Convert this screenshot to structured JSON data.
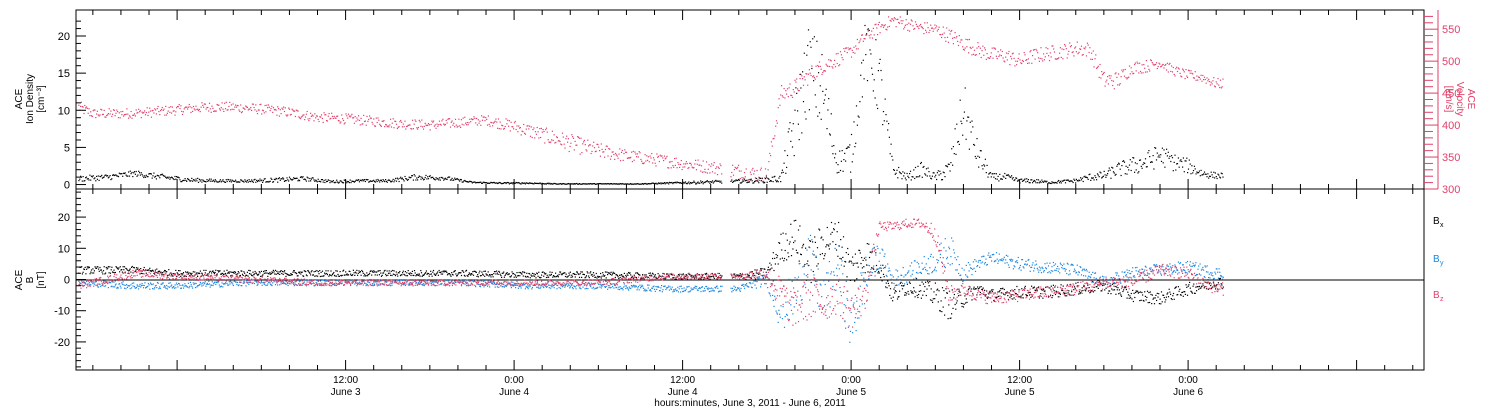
{
  "colors": {
    "density": "#000000",
    "velocity": "#e0406a",
    "bx": "#000000",
    "by": "#1a86e0",
    "bz": "#e0406a",
    "axis": "#000000"
  },
  "x_axis": {
    "label": "hours:minutes, June  3, 2011 - June  6, 2011",
    "ticks": [
      {
        "t": 12,
        "line1": "12:00",
        "line2": "June 3"
      },
      {
        "t": 24,
        "line1": "0:00",
        "line2": "June 4"
      },
      {
        "t": 36,
        "line1": "12:00",
        "line2": "June 4"
      },
      {
        "t": 48,
        "line1": "0:00",
        "line2": "June 5"
      },
      {
        "t": 60,
        "line1": "12:00",
        "line2": "June 5"
      },
      {
        "t": 72,
        "line1": "0:00",
        "line2": "June 6"
      }
    ]
  },
  "panel_top": {
    "left_label_lines": [
      "ACE",
      "Ion Density",
      "[cm⁻³]"
    ],
    "right_label_lines": [
      "ACE",
      "Velocity",
      "[km/s]"
    ],
    "left_ticks": [
      "0",
      "5",
      "10",
      "15",
      "20"
    ],
    "right_ticks": [
      "300",
      "350",
      "400",
      "450",
      "500",
      "550"
    ]
  },
  "panel_bottom": {
    "left_label_lines": [
      "ACE",
      "B",
      "[nT]"
    ],
    "left_ticks": [
      "-20",
      "-10",
      "0",
      "10",
      "20"
    ],
    "legend": [
      {
        "main": "B",
        "sub": "x",
        "series": "bx"
      },
      {
        "main": "B",
        "sub": "y",
        "series": "by"
      },
      {
        "main": "B",
        "sub": "z",
        "series": "bz"
      }
    ]
  },
  "chart_data": [
    {
      "type": "scatter",
      "title": "",
      "xlabel": "hours:minutes, June  3, 2011 - June  6, 2011",
      "x_unit": "hours since 2011-06-03 00:00",
      "xlim": [
        -7.2,
        88.8
      ],
      "ylabel": "ACE Ion Density [cm⁻³]",
      "ylim": [
        -0.6,
        23.5
      ],
      "y2label": "ACE Velocity [km/s]",
      "y2lim": [
        300,
        580
      ],
      "series": [
        {
          "name": "Ion Density",
          "axis": "left",
          "x": [
            -7,
            -5,
            -3,
            -1,
            1,
            3,
            5,
            7,
            9,
            11,
            13,
            15,
            17,
            19,
            21,
            23,
            25,
            27,
            29,
            31,
            33,
            35,
            37,
            39,
            41,
            43,
            44,
            45,
            46,
            47,
            48,
            49,
            50,
            51,
            52,
            53,
            54,
            55,
            56,
            57,
            58,
            59,
            60,
            61,
            62,
            63,
            64,
            65,
            66,
            67,
            68,
            69,
            70,
            71,
            72,
            73,
            74
          ],
          "y": [
            0.8,
            1.0,
            1.5,
            1.0,
            0.6,
            0.5,
            0.5,
            0.6,
            0.8,
            0.4,
            0.5,
            0.5,
            1.0,
            0.9,
            0.3,
            0.2,
            0.2,
            0.1,
            0.1,
            0.1,
            0.1,
            0.2,
            0.3,
            0.4,
            0.5,
            0.8,
            8,
            16,
            12,
            3,
            4,
            18,
            14,
            2,
            1,
            2,
            1,
            2,
            10,
            4,
            1,
            1,
            0.5,
            0.5,
            0.3,
            0.4,
            0.5,
            1.0,
            1.2,
            2,
            2.5,
            3,
            4,
            3,
            2.5,
            1.5,
            1.2
          ],
          "spread": [
            0.4,
            0.4,
            0.4,
            0.4,
            0.3,
            0.2,
            0.2,
            0.3,
            0.3,
            0.2,
            0.2,
            0.2,
            0.4,
            0.3,
            0.1,
            0.1,
            0.1,
            0.05,
            0.05,
            0.05,
            0.05,
            0.1,
            0.2,
            0.2,
            0.3,
            0.5,
            5,
            6,
            6,
            1.5,
            2.5,
            4,
            5,
            1,
            0.5,
            1,
            0.5,
            1.5,
            4,
            2,
            0.5,
            0.5,
            0.3,
            0.3,
            0.2,
            0.2,
            0.3,
            0.5,
            0.6,
            1.0,
            1.2,
            1.5,
            1.5,
            1.2,
            1.0,
            0.6,
            0.4
          ]
        },
        {
          "name": "Velocity",
          "axis": "right",
          "x": [
            -7,
            -6,
            -4,
            -2,
            0,
            2,
            4,
            6,
            8,
            10,
            12,
            14,
            16,
            18,
            20,
            22,
            24,
            26,
            28,
            30,
            32,
            34,
            36,
            38,
            40,
            41,
            42,
            43,
            44,
            45,
            46,
            47,
            48,
            49,
            50,
            51,
            52,
            53,
            54,
            55,
            56,
            57,
            58,
            59,
            60,
            61,
            62,
            63,
            64,
            65,
            66,
            67,
            68,
            69,
            70,
            71,
            72,
            73,
            74
          ],
          "y": [
            428,
            418,
            418,
            420,
            424,
            428,
            428,
            425,
            420,
            412,
            410,
            406,
            402,
            400,
            404,
            408,
            398,
            385,
            372,
            360,
            352,
            346,
            340,
            334,
            328,
            324,
            322,
            448,
            458,
            478,
            492,
            503,
            515,
            538,
            552,
            564,
            558,
            552,
            550,
            540,
            528,
            518,
            510,
            508,
            500,
            508,
            512,
            515,
            520,
            518,
            470,
            470,
            490,
            492,
            498,
            485,
            478,
            475,
            465
          ],
          "spread": [
            10,
            8,
            8,
            8,
            8,
            8,
            8,
            8,
            8,
            8,
            8,
            8,
            8,
            8,
            8,
            8,
            10,
            12,
            14,
            12,
            10,
            10,
            10,
            10,
            12,
            12,
            12,
            14,
            14,
            14,
            12,
            12,
            10,
            10,
            10,
            10,
            10,
            10,
            10,
            12,
            12,
            12,
            12,
            12,
            12,
            12,
            12,
            12,
            12,
            12,
            14,
            14,
            10,
            10,
            8,
            8,
            8,
            8,
            8
          ]
        }
      ]
    },
    {
      "type": "scatter",
      "title": "",
      "xlabel": "hours:minutes, June  3, 2011 - June  6, 2011",
      "x_unit": "hours since 2011-06-03 00:00",
      "xlim": [
        -7.2,
        88.8
      ],
      "ylabel": "ACE B [nT]",
      "ylim": [
        -29,
        29
      ],
      "series": [
        {
          "name": "Bx",
          "x": [
            -7,
            -3,
            0,
            5,
            10,
            15,
            20,
            25,
            30,
            35,
            40,
            42,
            43,
            44,
            45,
            46,
            47,
            48,
            49,
            50,
            51,
            52,
            53,
            54,
            55,
            56,
            57,
            58,
            60,
            62,
            64,
            66,
            68,
            70,
            72,
            74
          ],
          "y": [
            3,
            3,
            2,
            2,
            2,
            2,
            2,
            1.5,
            1.5,
            1,
            1,
            2,
            10,
            14,
            5,
            12,
            14,
            3,
            8,
            5,
            -5,
            -2,
            -3,
            -5,
            -8,
            -6,
            -3,
            -5,
            -4,
            -4,
            -3,
            -2,
            -5,
            -6,
            -3,
            -1
          ],
          "spread": [
            1.2,
            1.2,
            1,
            1,
            1,
            1,
            1,
            1,
            1,
            1,
            1,
            2,
            5,
            6,
            8,
            6,
            6,
            6,
            6,
            4,
            3,
            3,
            3,
            4,
            5,
            3,
            2,
            2,
            2,
            2,
            2,
            2,
            2,
            2,
            2,
            2
          ]
        },
        {
          "name": "By",
          "x": [
            -7,
            -3,
            0,
            5,
            10,
            15,
            20,
            25,
            30,
            35,
            40,
            42,
            43,
            44,
            45,
            46,
            47,
            48,
            49,
            50,
            51,
            52,
            53,
            54,
            55,
            56,
            57,
            58,
            60,
            62,
            64,
            66,
            68,
            70,
            72,
            74
          ],
          "y": [
            -1,
            -2,
            -2,
            -1,
            -1,
            -1,
            -1,
            -2,
            -2,
            -3,
            -3,
            0,
            -10,
            -5,
            8,
            -8,
            5,
            -15,
            0,
            8,
            0,
            2,
            4,
            6,
            10,
            2,
            5,
            7,
            5,
            4,
            3,
            -1,
            2,
            3,
            4,
            2
          ],
          "spread": [
            1,
            1.2,
            1,
            1,
            1,
            1,
            1,
            1,
            1,
            1,
            1,
            2,
            7,
            8,
            8,
            8,
            8,
            9,
            8,
            4,
            3,
            3,
            3,
            4,
            5,
            3,
            2,
            2,
            2,
            2,
            2,
            2,
            2,
            2,
            2,
            2
          ]
        },
        {
          "name": "Bz",
          "x": [
            -7,
            -3,
            0,
            5,
            10,
            15,
            20,
            25,
            30,
            35,
            40,
            42,
            43,
            44,
            45,
            46,
            47,
            48,
            49,
            50,
            51,
            52,
            53,
            54,
            55,
            56,
            57,
            58,
            60,
            62,
            64,
            66,
            68,
            70,
            72,
            74
          ],
          "y": [
            -2,
            2,
            1,
            0,
            -1,
            -1,
            -1,
            -1,
            -1,
            1,
            1,
            2,
            -5,
            -10,
            -5,
            -8,
            -5,
            -10,
            -5,
            17,
            17,
            18,
            18,
            15,
            -5,
            -3,
            -5,
            -6,
            -5,
            -4,
            -3,
            -1,
            -1,
            3,
            2,
            -3
          ],
          "spread": [
            1.2,
            1.2,
            1,
            1,
            1,
            1,
            1,
            1,
            1,
            1,
            1,
            2,
            6,
            6,
            8,
            6,
            6,
            6,
            6,
            1.5,
            1.5,
            1.5,
            1.5,
            3,
            3,
            2,
            2,
            2,
            2,
            2,
            2,
            2,
            2,
            2,
            2,
            2
          ]
        }
      ]
    }
  ]
}
